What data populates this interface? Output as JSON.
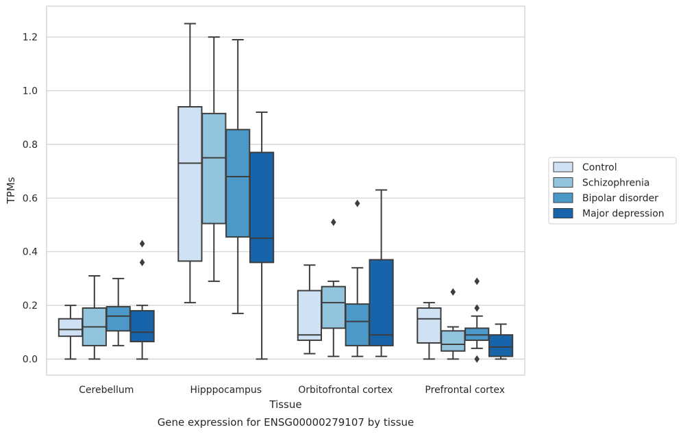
{
  "caption": "Gene expression for ENSG00000279107 by tissue",
  "colors": {
    "Control": "#cfe1f2",
    "Schizophrenia": "#93c4de",
    "Bipolar disorder": "#4b98c9",
    "Major depression": "#1764ab",
    "grid": "#d0d0d0",
    "edge": "#3d3d3d"
  },
  "chart_data": {
    "type": "box",
    "xlabel": "Tissue",
    "ylabel": "TPMs",
    "ylim": [
      -0.06,
      1.32
    ],
    "yticks": [
      0.0,
      0.2,
      0.4,
      0.6,
      0.8,
      1.0,
      1.2
    ],
    "ytick_labels": [
      "0.0",
      "0.2",
      "0.4",
      "0.6",
      "0.8",
      "1.0",
      "1.2"
    ],
    "categories": [
      "Cerebellum",
      "Hipppocampus",
      "Orbitofrontal cortex",
      "Prefrontal cortex"
    ],
    "legend": {
      "placement": "right",
      "entries": [
        "Control",
        "Schizophrenia",
        "Bipolar disorder",
        "Major depression"
      ]
    },
    "grid": "horizontal",
    "series": [
      {
        "name": "Control",
        "boxes": [
          {
            "whislo": 0.0,
            "q1": 0.085,
            "med": 0.11,
            "q3": 0.15,
            "whishi": 0.2,
            "fliers": []
          },
          {
            "whislo": 0.21,
            "q1": 0.365,
            "med": 0.73,
            "q3": 0.94,
            "whishi": 1.25,
            "fliers": []
          },
          {
            "whislo": 0.02,
            "q1": 0.07,
            "med": 0.09,
            "q3": 0.255,
            "whishi": 0.35,
            "fliers": []
          },
          {
            "whislo": 0.0,
            "q1": 0.06,
            "med": 0.15,
            "q3": 0.19,
            "whishi": 0.21,
            "fliers": []
          }
        ]
      },
      {
        "name": "Schizophrenia",
        "boxes": [
          {
            "whislo": 0.0,
            "q1": 0.05,
            "med": 0.12,
            "q3": 0.19,
            "whishi": 0.31,
            "fliers": []
          },
          {
            "whislo": 0.29,
            "q1": 0.505,
            "med": 0.75,
            "q3": 0.915,
            "whishi": 1.2,
            "fliers": []
          },
          {
            "whislo": 0.01,
            "q1": 0.115,
            "med": 0.21,
            "q3": 0.27,
            "whishi": 0.29,
            "fliers": [
              0.51
            ]
          },
          {
            "whislo": 0.0,
            "q1": 0.03,
            "med": 0.055,
            "q3": 0.105,
            "whishi": 0.12,
            "fliers": [
              0.25
            ]
          }
        ]
      },
      {
        "name": "Bipolar disorder",
        "boxes": [
          {
            "whislo": 0.05,
            "q1": 0.105,
            "med": 0.16,
            "q3": 0.195,
            "whishi": 0.3,
            "fliers": []
          },
          {
            "whislo": 0.17,
            "q1": 0.455,
            "med": 0.68,
            "q3": 0.855,
            "whishi": 1.19,
            "fliers": []
          },
          {
            "whislo": 0.01,
            "q1": 0.05,
            "med": 0.14,
            "q3": 0.205,
            "whishi": 0.34,
            "fliers": [
              0.58
            ]
          },
          {
            "whislo": 0.04,
            "q1": 0.07,
            "med": 0.09,
            "q3": 0.115,
            "whishi": 0.16,
            "fliers": [
              0.29,
              0.19,
              0.0
            ]
          }
        ]
      },
      {
        "name": "Major depression",
        "boxes": [
          {
            "whislo": 0.0,
            "q1": 0.065,
            "med": 0.1,
            "q3": 0.18,
            "whishi": 0.2,
            "fliers": [
              0.43,
              0.36
            ]
          },
          {
            "whislo": 0.0,
            "q1": 0.36,
            "med": 0.45,
            "q3": 0.77,
            "whishi": 0.92,
            "fliers": []
          },
          {
            "whislo": 0.01,
            "q1": 0.05,
            "med": 0.09,
            "q3": 0.37,
            "whishi": 0.63,
            "fliers": []
          },
          {
            "whislo": 0.0,
            "q1": 0.01,
            "med": 0.045,
            "q3": 0.09,
            "whishi": 0.13,
            "fliers": []
          }
        ]
      }
    ]
  }
}
